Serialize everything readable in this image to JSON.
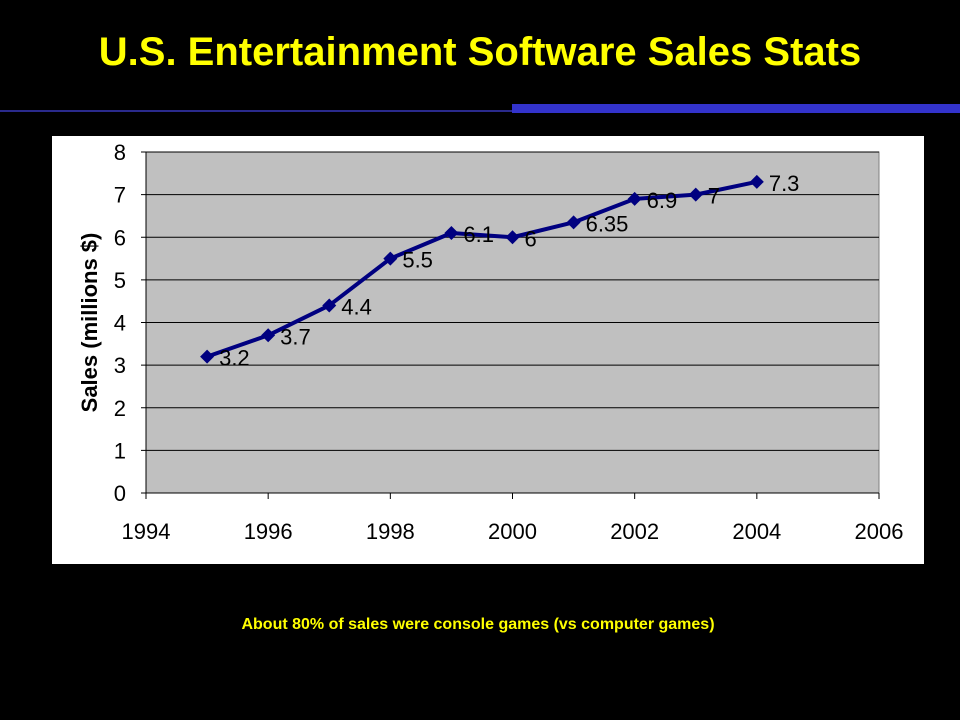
{
  "slide": {
    "title": "U.S. Entertainment Software Sales Stats",
    "footnote": "About 80% of sales were console games (vs computer games)"
  },
  "colors": {
    "background": "#000000",
    "title": "#FFFF00",
    "accent_bar": "#3333CC",
    "plot_area": "#C0C0C0",
    "series": "#000080"
  },
  "chart_data": {
    "type": "line",
    "title": "",
    "xlabel": "",
    "ylabel": "Sales (millions $)",
    "xlim": [
      1994,
      2006
    ],
    "ylim": [
      0,
      8
    ],
    "x_ticks": [
      1994,
      1996,
      1998,
      2000,
      2002,
      2004,
      2006
    ],
    "y_ticks": [
      0,
      1,
      2,
      3,
      4,
      5,
      6,
      7,
      8
    ],
    "grid": "horizontal",
    "legend": "none",
    "series": [
      {
        "x": [
          1995,
          1996,
          1997,
          1998,
          1999,
          2000,
          2001,
          2002,
          2003,
          2004
        ],
        "values": [
          3.2,
          3.7,
          4.4,
          5.5,
          6.1,
          6,
          6.35,
          6.9,
          7,
          7.3
        ],
        "labels": [
          "3.2",
          "3.7",
          "4.4",
          "5.5",
          "6.1",
          "6",
          "6.35",
          "6.9",
          "7",
          "7.3"
        ],
        "marker": "diamond"
      }
    ]
  }
}
